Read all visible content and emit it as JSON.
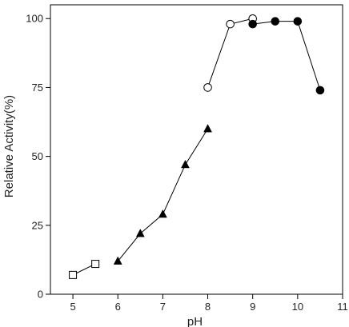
{
  "chart_data": {
    "type": "scatter",
    "title": "",
    "xlabel": "pH",
    "ylabel": "Relative Activity(%)",
    "xlim": [
      4.5,
      11
    ],
    "ylim": [
      0,
      105
    ],
    "x_ticks": [
      5,
      6,
      7,
      8,
      9,
      10,
      11
    ],
    "y_ticks": [
      0,
      25,
      50,
      75,
      100
    ],
    "grid": false,
    "legend": "none",
    "series": [
      {
        "marker": "open-square",
        "color": "#000000",
        "points": [
          {
            "x": 5.0,
            "y": 7
          },
          {
            "x": 5.5,
            "y": 11
          }
        ]
      },
      {
        "marker": "filled-triangle",
        "color": "#000000",
        "points": [
          {
            "x": 6.0,
            "y": 12
          },
          {
            "x": 6.5,
            "y": 22
          },
          {
            "x": 7.0,
            "y": 29
          },
          {
            "x": 7.5,
            "y": 47
          },
          {
            "x": 8.0,
            "y": 60
          }
        ]
      },
      {
        "marker": "open-circle",
        "color": "#000000",
        "points": [
          {
            "x": 8.0,
            "y": 75
          },
          {
            "x": 8.5,
            "y": 98
          },
          {
            "x": 9.0,
            "y": 100
          }
        ]
      },
      {
        "marker": "filled-circle",
        "color": "#000000",
        "points": [
          {
            "x": 9.0,
            "y": 98
          },
          {
            "x": 9.5,
            "y": 99
          },
          {
            "x": 10.0,
            "y": 99
          },
          {
            "x": 10.5,
            "y": 74
          }
        ]
      }
    ]
  }
}
